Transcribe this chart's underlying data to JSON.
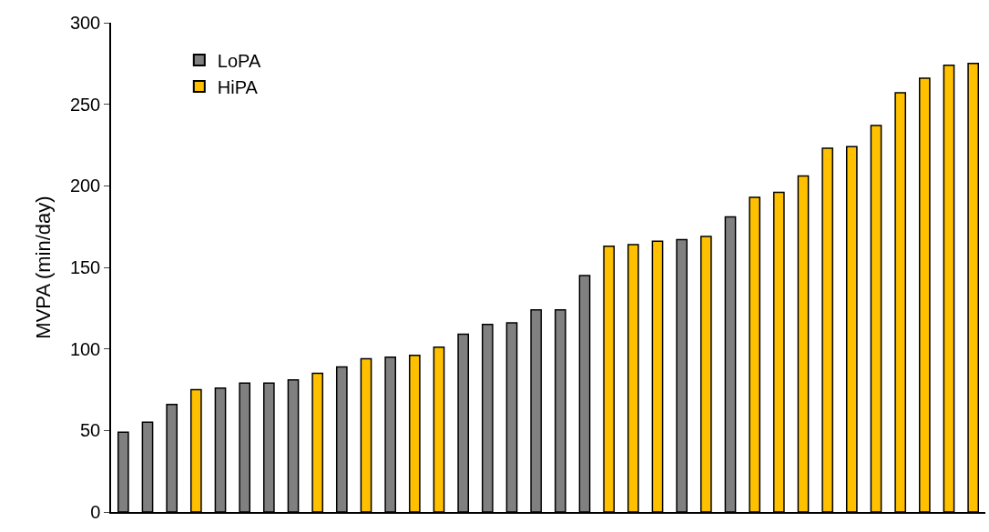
{
  "chart_data": {
    "type": "bar",
    "ylabel": "MVPA (min/day)",
    "categories": [
      null,
      null,
      null,
      null,
      null,
      null,
      null,
      null,
      null,
      null,
      null,
      null,
      null,
      null,
      null,
      null,
      null,
      null,
      null,
      null,
      null,
      null,
      null,
      null,
      null,
      null,
      null,
      null,
      null,
      null,
      null,
      null,
      null,
      null,
      null,
      null
    ],
    "series": [
      {
        "name": "LoPA",
        "color": "#808080",
        "values": [
          49,
          55,
          66,
          null,
          76,
          79,
          79,
          81,
          null,
          89,
          null,
          95,
          null,
          null,
          109,
          115,
          116,
          124,
          124,
          145,
          null,
          null,
          null,
          167,
          null,
          181,
          null,
          null,
          null,
          null,
          null,
          null,
          null,
          null,
          null,
          null
        ]
      },
      {
        "name": "HiPA",
        "color": "#ffc000",
        "values": [
          null,
          null,
          null,
          75,
          null,
          null,
          null,
          null,
          85,
          null,
          94,
          null,
          96,
          101,
          null,
          null,
          null,
          null,
          null,
          null,
          163,
          164,
          166,
          null,
          169,
          null,
          193,
          196,
          206,
          223,
          224,
          237,
          257,
          266,
          274,
          275
        ]
      }
    ],
    "ylim": [
      0,
      300
    ],
    "yticks": [
      0,
      50,
      100,
      150,
      200,
      250,
      300
    ],
    "grid": false,
    "legend": "top left"
  }
}
